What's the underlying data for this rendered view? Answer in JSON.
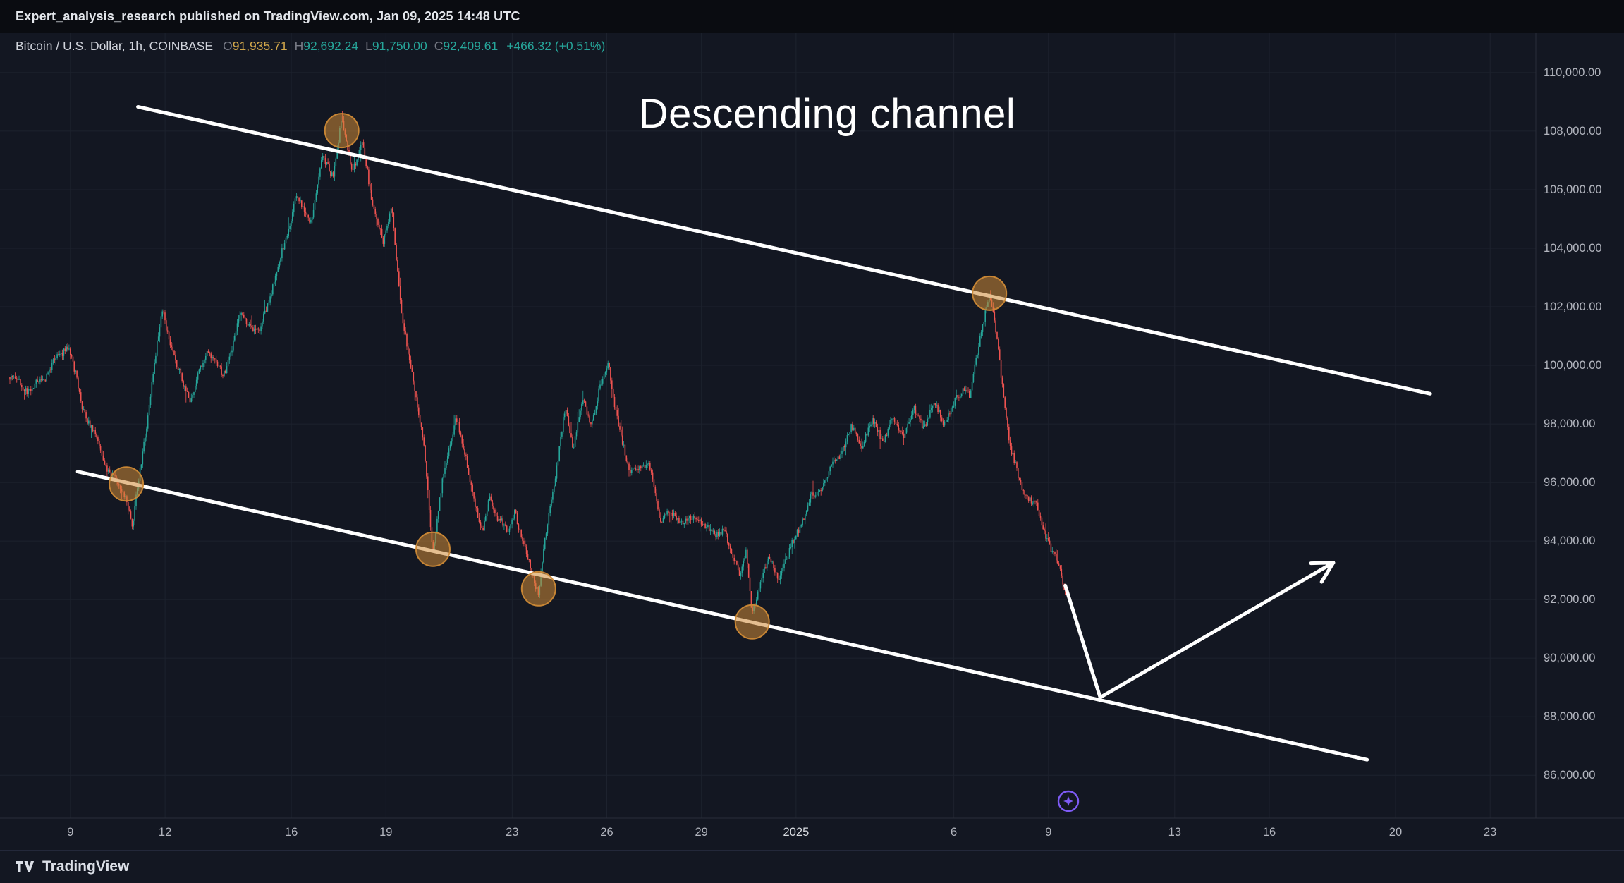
{
  "topbar": {
    "publish_line": "Expert_analysis_research published on TradingView.com, Jan 09, 2025 14:48 UTC"
  },
  "legend": {
    "symbol": "Bitcoin / U.S. Dollar, 1h, COINBASE",
    "o_label": "O",
    "o_value": "91,935.71",
    "h_label": "H",
    "h_value": "92,692.24",
    "l_label": "L",
    "l_value": "91,750.00",
    "c_label": "C",
    "c_value": "92,409.61",
    "change_value": "+466.32 (+0.51%)",
    "colors": {
      "labels": "#787b86",
      "open_value": "#d4a94c",
      "hlc_values": "#26a69a",
      "change": "#26a69a",
      "symbol": "#d1d4dc"
    }
  },
  "footer": {
    "brand": "TradingView"
  },
  "chart_data": {
    "type": "candlestick",
    "symbol": "Bitcoin / U.S. Dollar",
    "exchange": "COINBASE",
    "interval": "1h",
    "annotation_title": "Descending channel",
    "last_ohlc": {
      "open": 91935.71,
      "high": 92692.24,
      "low": 91750.0,
      "close": 92409.61,
      "change": 466.32,
      "change_pct": 0.51
    },
    "y_axis": {
      "ticks": [
        110000,
        108000,
        106000,
        104000,
        102000,
        100000,
        98000,
        96000,
        94000,
        92000,
        90000,
        88000,
        86000
      ],
      "tick_labels": [
        "110,000.00",
        "108,000.00",
        "106,000.00",
        "104,000.00",
        "102,000.00",
        "100,000.00",
        "98,000.00",
        "96,000.00",
        "94,000.00",
        "92,000.00",
        "90,000.00",
        "88,000.00",
        "86,000.00"
      ],
      "visible_min": 84800,
      "visible_max": 111100
    },
    "x_axis": {
      "labels": [
        {
          "text": "9",
          "day": 0
        },
        {
          "text": "12",
          "day": 3
        },
        {
          "text": "16",
          "day": 7
        },
        {
          "text": "19",
          "day": 10
        },
        {
          "text": "23",
          "day": 14
        },
        {
          "text": "26",
          "day": 17
        },
        {
          "text": "29",
          "day": 20
        },
        {
          "text": "2025",
          "day": 23
        },
        {
          "text": "6",
          "day": 28
        },
        {
          "text": "9",
          "day": 31
        },
        {
          "text": "13",
          "day": 35
        },
        {
          "text": "16",
          "day": 38
        },
        {
          "text": "20",
          "day": 42
        },
        {
          "text": "23",
          "day": 45
        }
      ]
    },
    "series_anchors_day_price": [
      [
        -1.9,
        99600
      ],
      [
        -1.25,
        99000
      ],
      [
        -0.66,
        99900
      ],
      [
        -0.1,
        100800
      ],
      [
        0.39,
        98500
      ],
      [
        0.89,
        97200
      ],
      [
        1.38,
        96200
      ],
      [
        1.77,
        95600
      ],
      [
        1.97,
        94500
      ],
      [
        2.36,
        97500
      ],
      [
        2.92,
        102000
      ],
      [
        3.35,
        100000
      ],
      [
        3.84,
        98800
      ],
      [
        4.34,
        100500
      ],
      [
        4.83,
        99600
      ],
      [
        5.39,
        101800
      ],
      [
        5.98,
        101000
      ],
      [
        6.63,
        103500
      ],
      [
        7.13,
        105800
      ],
      [
        7.62,
        105000
      ],
      [
        8.01,
        107000
      ],
      [
        8.34,
        106500
      ],
      [
        8.6,
        108300
      ],
      [
        8.93,
        106800
      ],
      [
        9.26,
        107600
      ],
      [
        9.59,
        105500
      ],
      [
        9.92,
        104000
      ],
      [
        10.18,
        105500
      ],
      [
        10.51,
        101500
      ],
      [
        10.9,
        99500
      ],
      [
        11.23,
        97000
      ],
      [
        11.49,
        93700
      ],
      [
        11.69,
        95200
      ],
      [
        11.89,
        96500
      ],
      [
        12.22,
        98300
      ],
      [
        12.48,
        97000
      ],
      [
        12.81,
        95500
      ],
      [
        13.07,
        94300
      ],
      [
        13.3,
        95600
      ],
      [
        13.53,
        94800
      ],
      [
        13.86,
        94100
      ],
      [
        14.09,
        95100
      ],
      [
        14.35,
        93800
      ],
      [
        14.61,
        93100
      ],
      [
        14.84,
        92350
      ],
      [
        15.07,
        94200
      ],
      [
        15.37,
        96300
      ],
      [
        15.67,
        98300
      ],
      [
        15.93,
        97200
      ],
      [
        16.22,
        98800
      ],
      [
        16.49,
        98000
      ],
      [
        16.75,
        99300
      ],
      [
        17.04,
        100000
      ],
      [
        17.37,
        98000
      ],
      [
        17.7,
        96200
      ],
      [
        18.03,
        96600
      ],
      [
        18.39,
        96500
      ],
      [
        18.72,
        94800
      ],
      [
        19.11,
        94900
      ],
      [
        19.51,
        94500
      ],
      [
        19.9,
        94800
      ],
      [
        20.3,
        94300
      ],
      [
        20.69,
        94500
      ],
      [
        20.95,
        93500
      ],
      [
        21.22,
        92900
      ],
      [
        21.41,
        93600
      ],
      [
        21.61,
        91300
      ],
      [
        21.87,
        92800
      ],
      [
        22.14,
        93400
      ],
      [
        22.46,
        92900
      ],
      [
        22.79,
        93600
      ],
      [
        23.12,
        94500
      ],
      [
        23.45,
        95300
      ],
      [
        23.78,
        95800
      ],
      [
        24.11,
        96500
      ],
      [
        24.43,
        97200
      ],
      [
        24.76,
        97800
      ],
      [
        25.09,
        97300
      ],
      [
        25.42,
        98000
      ],
      [
        25.75,
        97500
      ],
      [
        26.08,
        98200
      ],
      [
        26.41,
        97700
      ],
      [
        26.73,
        98400
      ],
      [
        27.06,
        97900
      ],
      [
        27.39,
        98600
      ],
      [
        27.72,
        98100
      ],
      [
        28.05,
        98800
      ],
      [
        28.31,
        99400
      ],
      [
        28.51,
        99000
      ],
      [
        28.74,
        100300
      ],
      [
        28.97,
        101700
      ],
      [
        29.13,
        102460
      ],
      [
        29.36,
        100800
      ],
      [
        29.56,
        99200
      ],
      [
        29.79,
        97200
      ],
      [
        30.05,
        96200
      ],
      [
        30.31,
        95600
      ],
      [
        30.58,
        95200
      ],
      [
        30.84,
        94400
      ],
      [
        31.07,
        93700
      ],
      [
        31.3,
        93100
      ],
      [
        31.53,
        92410
      ]
    ],
    "channel": {
      "upper_day_price": [
        [
          2.14,
          108830
        ],
        [
          43.1,
          99030
        ]
      ],
      "lower_day_price": [
        [
          0.23,
          96370
        ],
        [
          41.1,
          86530
        ]
      ]
    },
    "touch_circles_day_price": [
      [
        1.77,
        95950
      ],
      [
        8.6,
        108020
      ],
      [
        11.49,
        93720
      ],
      [
        14.84,
        92370
      ],
      [
        21.61,
        91240
      ],
      [
        29.13,
        102460
      ]
    ],
    "arrow_day_price": [
      [
        31.53,
        92480
      ],
      [
        32.64,
        88660
      ],
      [
        40.03,
        93260
      ]
    ],
    "marker_day_price": [
      31.63,
      85114
    ],
    "colors": {
      "up": "#26a69a",
      "down": "#ef5350",
      "channel": "#ffffff",
      "circle": "#cf8a36",
      "arrow": "#ffffff",
      "marker": "#7e5bf5",
      "grid": "#1d222e",
      "background": "#131722",
      "axis_text": "#b2b5be",
      "separator": "#2a2e39"
    }
  }
}
